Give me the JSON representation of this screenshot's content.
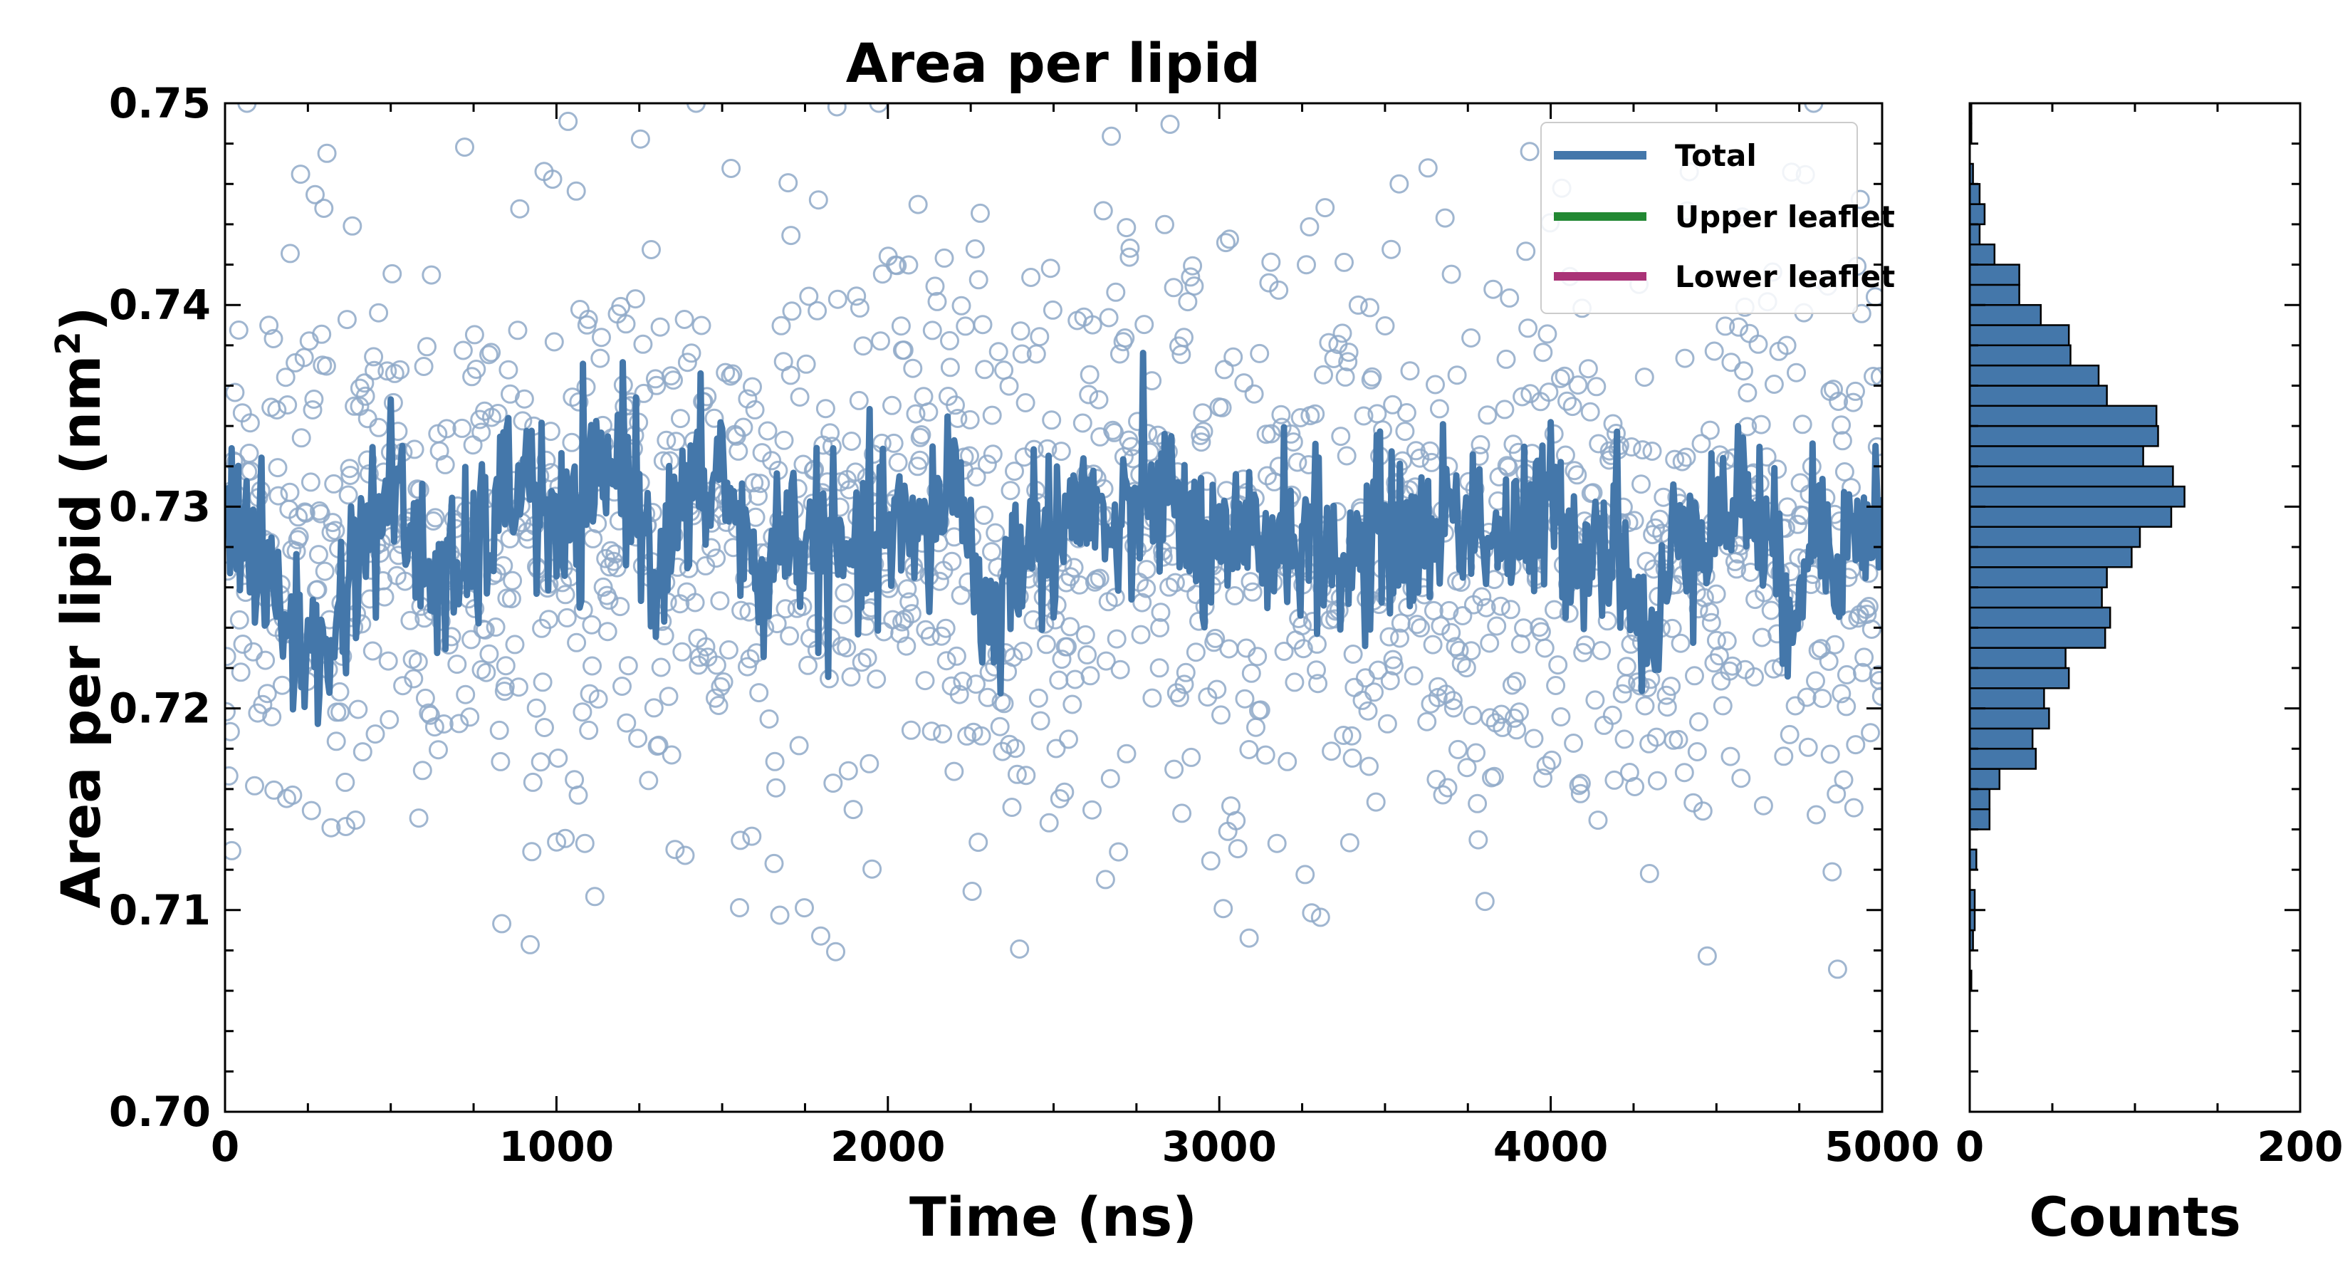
{
  "colors": {
    "total": "#4477aa",
    "upper": "#228833",
    "lower": "#aa3377",
    "scatter": "#8fa9c8",
    "hist_fill": "#4477aa"
  },
  "chart_data": [
    {
      "type": "line",
      "title": "Area per lipid",
      "xlabel": "Time (ns)",
      "ylabel": "Area per lipid (nm",
      "ylabel_sup": "2",
      "ylabel_end": ")",
      "xlim": [
        0,
        5000
      ],
      "ylim": [
        0.7,
        0.75
      ],
      "x_ticks": [
        "0",
        "1000",
        "2000",
        "3000",
        "4000",
        "5000"
      ],
      "y_ticks": [
        "0.70",
        "0.71",
        "0.72",
        "0.73",
        "0.74",
        "0.75"
      ],
      "legend_position": "top-right",
      "series": [
        {
          "name": "Total",
          "style": "line",
          "x": [
            0,
            100,
            200,
            300,
            400,
            500,
            600,
            700,
            800,
            900,
            1000,
            1100,
            1200,
            1300,
            1400,
            1500,
            1600,
            1700,
            1800,
            1900,
            2000,
            2100,
            2200,
            2300,
            2400,
            2500,
            2600,
            2700,
            2800,
            2900,
            3000,
            3100,
            3200,
            3300,
            3400,
            3500,
            3600,
            3700,
            3800,
            3900,
            4000,
            4100,
            4200,
            4300,
            4400,
            4500,
            4600,
            4700,
            4800,
            4900,
            5000
          ],
          "y": [
            0.731,
            0.727,
            0.724,
            0.722,
            0.728,
            0.731,
            0.727,
            0.726,
            0.729,
            0.732,
            0.728,
            0.73,
            0.733,
            0.727,
            0.73,
            0.732,
            0.726,
            0.729,
            0.728,
            0.727,
            0.729,
            0.728,
            0.732,
            0.724,
            0.728,
            0.729,
            0.73,
            0.728,
            0.731,
            0.729,
            0.727,
            0.728,
            0.729,
            0.728,
            0.727,
            0.729,
            0.728,
            0.73,
            0.729,
            0.728,
            0.73,
            0.728,
            0.729,
            0.722,
            0.73,
            0.729,
            0.731,
            0.725,
            0.729,
            0.728,
            0.73
          ]
        },
        {
          "name": "Upper leaflet",
          "style": "line",
          "x": [],
          "y": []
        },
        {
          "name": "Lower leaflet",
          "style": "line",
          "x": [],
          "y": []
        }
      ],
      "scatter_summary": {
        "mean": 0.728,
        "sd": 0.0075,
        "x_range": [
          0,
          5000
        ],
        "y_range": [
          0.706,
          0.75
        ]
      }
    },
    {
      "type": "bar",
      "orientation": "horizontal",
      "xlabel": "Counts",
      "xlim": [
        0,
        200
      ],
      "x_ticks": [
        "0",
        "200"
      ],
      "bin_edges": [
        0.706,
        0.707,
        0.708,
        0.709,
        0.71,
        0.711,
        0.712,
        0.713,
        0.714,
        0.715,
        0.716,
        0.717,
        0.718,
        0.719,
        0.72,
        0.721,
        0.722,
        0.723,
        0.724,
        0.725,
        0.726,
        0.727,
        0.728,
        0.729,
        0.73,
        0.731,
        0.732,
        0.733,
        0.734,
        0.735,
        0.736,
        0.737,
        0.738,
        0.739,
        0.74,
        0.741,
        0.742,
        0.743,
        0.744,
        0.745,
        0.746,
        0.747,
        0.748,
        0.749,
        0.75
      ],
      "values": [
        1,
        0,
        2,
        3,
        3,
        0,
        4,
        0,
        12,
        12,
        18,
        40,
        38,
        48,
        45,
        60,
        58,
        82,
        85,
        80,
        83,
        98,
        103,
        122,
        130,
        123,
        105,
        114,
        113,
        83,
        78,
        61,
        60,
        43,
        30,
        30,
        15,
        6,
        9,
        6,
        2,
        0,
        1,
        1
      ]
    }
  ]
}
